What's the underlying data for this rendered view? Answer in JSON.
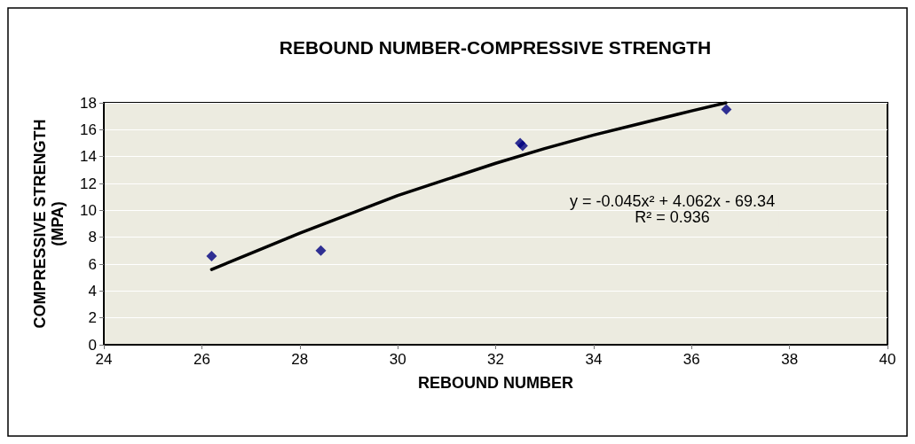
{
  "chart_data": {
    "type": "scatter",
    "title": "REBOUND NUMBER-COMPRESSIVE STRENGTH",
    "xlabel": "REBOUND NUMBER",
    "ylabel": "COMPRESSIVE STRENGTH\n(MPA)",
    "annotations": [
      "y = -0.045x² + 4.062x - 69.34\nR² = 0.936"
    ],
    "series": [
      {
        "color": "#000080",
        "marker": "diamond",
        "x": [
          26.2,
          28.43,
          32.5,
          32.55,
          36.71
        ],
        "values": [
          6.6,
          7.0,
          15.0,
          14.8,
          17.5
        ]
      },
      {
        "type": "line",
        "color": "#000000",
        "marker": "none",
        "x": [
          26.2,
          27,
          28,
          29,
          30,
          31,
          32,
          33,
          34,
          35,
          36,
          36.7
        ],
        "values": [
          5.6,
          6.8,
          8.3,
          9.7,
          11.1,
          12.3,
          13.5,
          14.6,
          15.6,
          16.5,
          17.4,
          18.0
        ]
      }
    ],
    "xlim": [
      24,
      40
    ],
    "xticks": [
      24,
      26,
      28,
      30,
      32,
      34,
      36,
      38,
      40
    ],
    "ylim": [
      0,
      18
    ],
    "yticks": [
      0,
      2,
      4,
      6,
      8,
      10,
      12,
      14,
      16,
      18
    ],
    "grid": "y"
  }
}
